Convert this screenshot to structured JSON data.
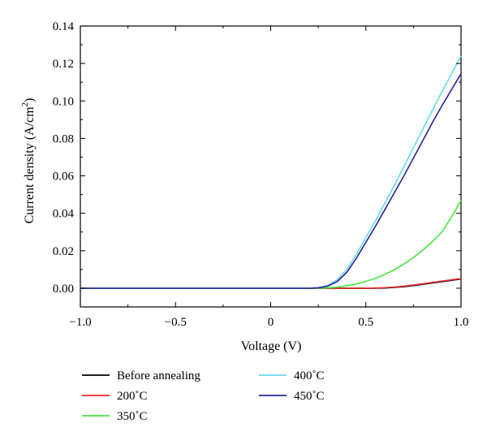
{
  "chart_data": {
    "type": "line",
    "xlabel": "Voltage (V)",
    "ylabel": "Current density (A/cm",
    "ylabel_sup": "2",
    "ylabel_end": ")",
    "xlim": [
      -1.0,
      1.0
    ],
    "ylim": [
      -0.01,
      0.14
    ],
    "x_ticks": [
      -1.0,
      -0.5,
      0,
      0.5,
      1.0
    ],
    "x_tick_labels": [
      "−1.0",
      "−0.5",
      "0",
      "0.5",
      "1.0"
    ],
    "y_ticks": [
      0.0,
      0.02,
      0.04,
      0.06,
      0.08,
      0.1,
      0.12,
      0.14
    ],
    "y_tick_labels": [
      "0.00",
      "0.02",
      "0.04",
      "0.06",
      "0.08",
      "0.10",
      "0.12",
      "0.14"
    ],
    "grid": false,
    "legend_position": "bottom",
    "x": [
      -1.0,
      -0.5,
      0.0,
      0.2,
      0.25,
      0.3,
      0.35,
      0.4,
      0.45,
      0.5,
      0.55,
      0.6,
      0.65,
      0.7,
      0.75,
      0.8,
      0.85,
      0.9,
      0.95,
      1.0
    ],
    "series": [
      {
        "name": "Before annealing",
        "color": "#000000",
        "values": [
          0,
          0,
          0,
          0,
          0,
          0,
          0,
          0,
          0,
          0,
          0,
          0.0001,
          0.0004,
          0.0008,
          0.0014,
          0.0021,
          0.0028,
          0.0035,
          0.0042,
          0.0049
        ]
      },
      {
        "name": "200˚C",
        "color": "#e8262a",
        "values": [
          0,
          0,
          0,
          0,
          0,
          0,
          0,
          0,
          0,
          0,
          0.0001,
          0.0003,
          0.0006,
          0.0011,
          0.0017,
          0.0024,
          0.0031,
          0.0038,
          0.0045,
          0.0051
        ]
      },
      {
        "name": "350˚C",
        "color": "#46e83c",
        "values": [
          0,
          0,
          0,
          0,
          0,
          0.0002,
          0.0006,
          0.0013,
          0.0023,
          0.0036,
          0.0053,
          0.0074,
          0.0099,
          0.0129,
          0.0164,
          0.0204,
          0.0249,
          0.03,
          0.038,
          0.0468
        ]
      },
      {
        "name": "400˚C",
        "color": "#6ad9ec",
        "values": [
          0,
          0,
          0,
          0,
          0.0003,
          0.0015,
          0.0045,
          0.01,
          0.018,
          0.027,
          0.036,
          0.0455,
          0.055,
          0.065,
          0.075,
          0.085,
          0.095,
          0.105,
          0.1145,
          0.124
        ]
      },
      {
        "name": "450˚C",
        "color": "#27249a",
        "values": [
          0,
          0,
          0,
          0,
          0.0002,
          0.0011,
          0.0036,
          0.0085,
          0.016,
          0.0245,
          0.033,
          0.042,
          0.051,
          0.06,
          0.0695,
          0.079,
          0.0885,
          0.0975,
          0.106,
          0.1145
        ]
      }
    ]
  }
}
